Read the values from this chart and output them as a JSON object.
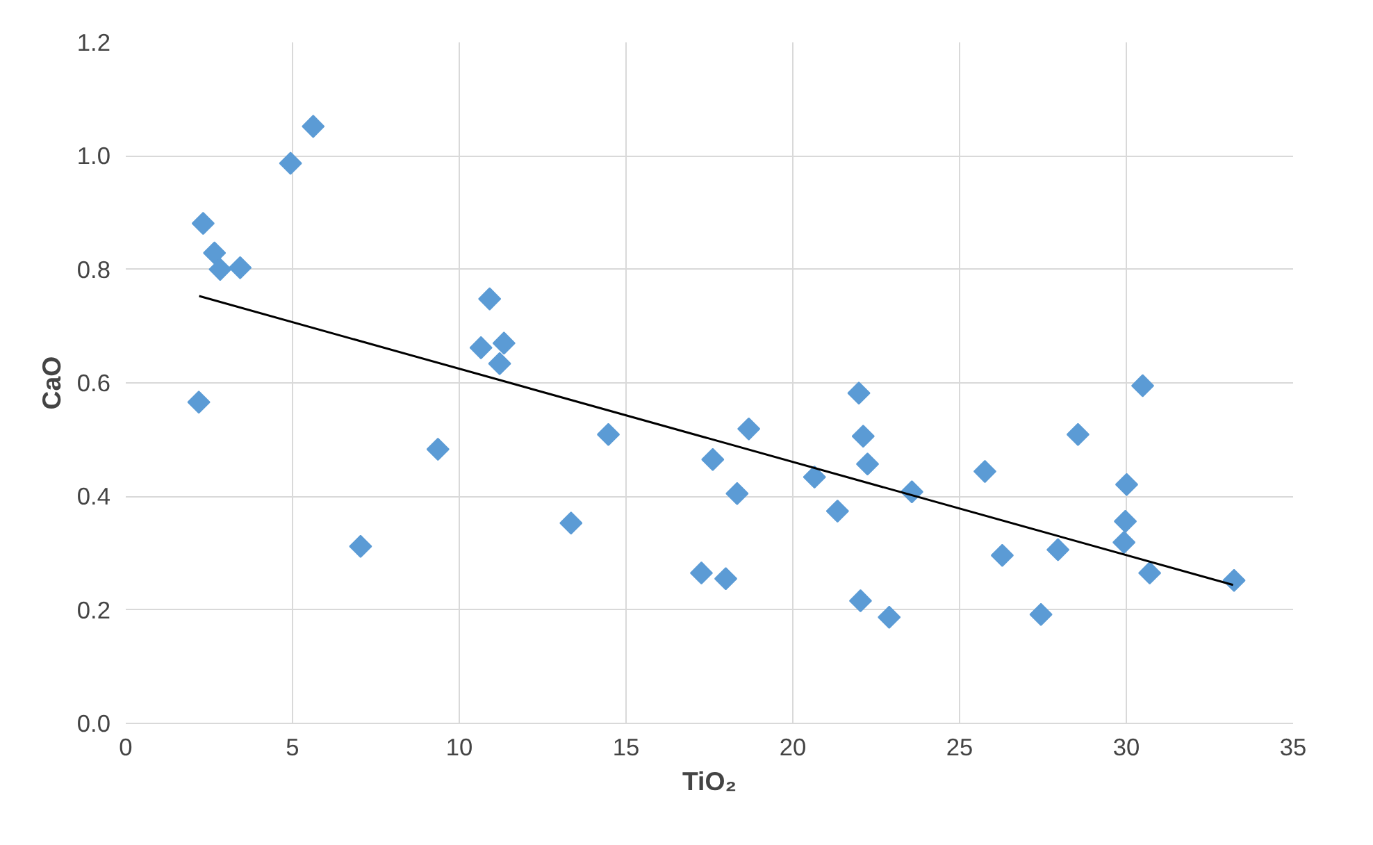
{
  "chart_data": {
    "type": "scatter",
    "xlabel": "TiO₂",
    "ylabel": "CaO",
    "marker": "diamond",
    "grid": true,
    "xlim": [
      0,
      35
    ],
    "xticks": [
      0,
      5,
      10,
      15,
      20,
      25,
      30,
      35
    ],
    "ylim": [
      0,
      1.2
    ],
    "yticks": [
      {
        "value": 0,
        "label": "0.0"
      },
      {
        "value": 0.2,
        "label": "0.2"
      },
      {
        "value": 0.4,
        "label": "0.4"
      },
      {
        "value": 0.6,
        "label": "0.6"
      },
      {
        "value": 0.8,
        "label": "0.8"
      },
      {
        "value": 1.0,
        "label": "1.0"
      },
      {
        "value": 1.2,
        "label": "1.2"
      }
    ],
    "series": [
      {
        "color": "#5b9bd5",
        "x": [
          2.19,
          2.32,
          2.66,
          2.83,
          3.43,
          4.94,
          5.62,
          7.04,
          9.36,
          10.65,
          10.91,
          11.21,
          11.34,
          13.35,
          14.47,
          17.26,
          17.6,
          17.99,
          18.33,
          18.68,
          20.65,
          21.34,
          21.98,
          22.03,
          22.11,
          22.24,
          22.89,
          23.57,
          25.76,
          26.28,
          27.44,
          27.95,
          28.55,
          29.93,
          29.97,
          30.01,
          30.49,
          30.7,
          33.23
        ],
        "values": [
          0.566,
          0.881,
          0.829,
          0.8,
          0.803,
          0.987,
          1.052,
          0.312,
          0.483,
          0.662,
          0.748,
          0.634,
          0.67,
          0.353,
          0.509,
          0.265,
          0.465,
          0.255,
          0.405,
          0.519,
          0.434,
          0.374,
          0.582,
          0.216,
          0.506,
          0.457,
          0.187,
          0.408,
          0.444,
          0.296,
          0.192,
          0.306,
          0.509,
          0.319,
          0.356,
          0.421,
          0.595,
          0.265,
          0.252
        ]
      },
      {
        "type": "line",
        "color": "#000000",
        "marker": "none",
        "line_style": "solid",
        "x": [
          2.2,
          33.2
        ],
        "values": [
          0.753,
          0.244
        ]
      }
    ]
  }
}
